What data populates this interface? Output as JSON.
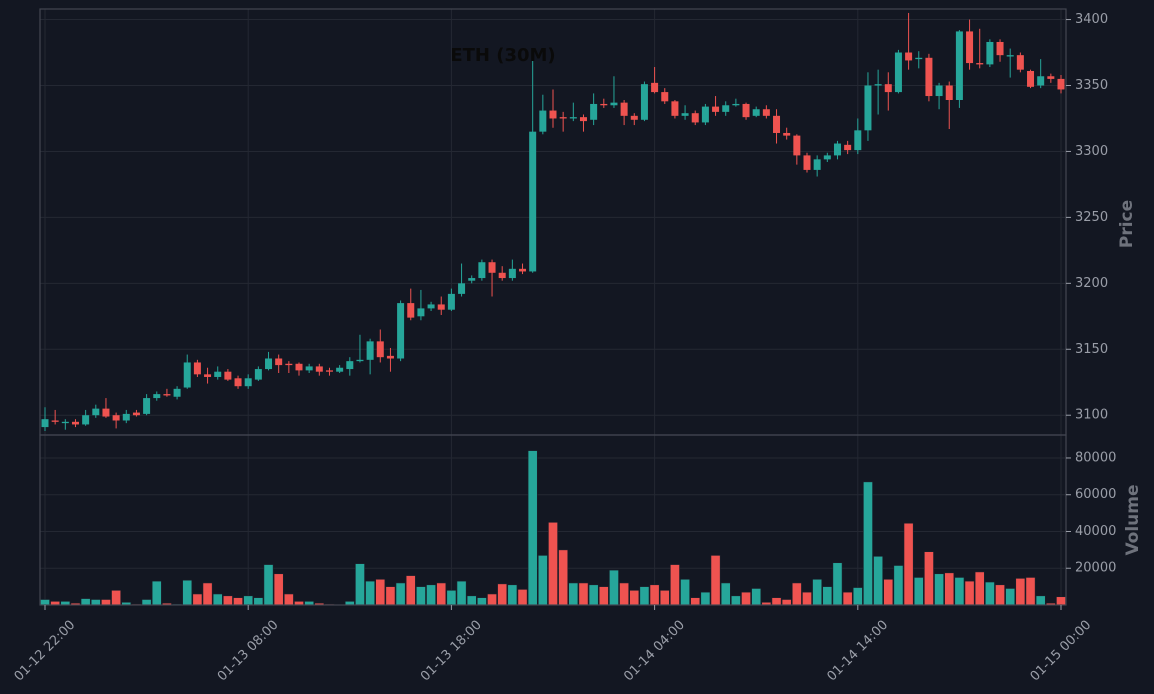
{
  "chart_data": {
    "type": "candlestick",
    "title": "ETH (30M)",
    "ylabel": "Price",
    "volume_label": "Volume",
    "up_color": "#26a69a",
    "down_color": "#ef5350",
    "grid": true,
    "categories": [
      "01-12 22:00",
      null,
      null,
      null,
      null,
      null,
      null,
      null,
      null,
      null,
      null,
      null,
      null,
      null,
      null,
      null,
      null,
      null,
      null,
      null,
      "01-13 08:00",
      null,
      null,
      null,
      null,
      null,
      null,
      null,
      null,
      null,
      null,
      null,
      null,
      null,
      null,
      null,
      null,
      null,
      null,
      null,
      "01-13 18:00",
      null,
      null,
      null,
      null,
      null,
      null,
      null,
      null,
      null,
      null,
      null,
      null,
      null,
      null,
      null,
      null,
      null,
      null,
      null,
      "01-14 04:00",
      null,
      null,
      null,
      null,
      null,
      null,
      null,
      null,
      null,
      null,
      null,
      null,
      null,
      null,
      null,
      null,
      null,
      null,
      null,
      "01-14 14:00",
      null,
      null,
      null,
      null,
      null,
      null,
      null,
      null,
      null,
      null,
      null,
      null,
      null,
      null,
      null,
      null,
      null,
      null,
      null,
      "01-15 00:00"
    ],
    "open": [
      3091,
      3096,
      3094,
      3095,
      3093,
      3100,
      3105,
      3100,
      3096,
      3102,
      3101,
      3113,
      3116,
      3114,
      3121,
      3140,
      3131,
      3129,
      3133,
      3128,
      3122,
      3127,
      3135,
      3143,
      3139,
      3139,
      3134,
      3137,
      3134,
      3133,
      3135,
      3141,
      3142,
      3156,
      3145,
      3143,
      3185,
      3175,
      3181,
      3184,
      3180,
      3192,
      3202,
      3204,
      3216,
      3208,
      3204,
      3211,
      3209,
      3315,
      3331,
      3326,
      3325,
      3326,
      3324,
      3336,
      3335,
      3337,
      3327,
      3324,
      3352,
      3345,
      3338,
      3327,
      3329,
      3322,
      3334,
      3330,
      3335,
      3336,
      3327,
      3332,
      3327,
      3314,
      3312,
      3297,
      3286,
      3294,
      3297,
      3305,
      3301,
      3316,
      3350,
      3351,
      3345,
      3375,
      3370,
      3371,
      3342,
      3350,
      3339,
      3391,
      3367,
      3366,
      3383,
      3372,
      3373,
      3361,
      3350,
      3357,
      3355
    ],
    "high": [
      3106,
      3104,
      3097,
      3097,
      3104,
      3108,
      3113,
      3102,
      3104,
      3104,
      3116,
      3118,
      3120,
      3122,
      3146,
      3142,
      3136,
      3137,
      3135,
      3130,
      3131,
      3137,
      3148,
      3146,
      3141,
      3140,
      3139,
      3139,
      3136,
      3138,
      3144,
      3161,
      3158,
      3165,
      3151,
      3187,
      3196,
      3195,
      3186,
      3190,
      3196,
      3215,
      3206,
      3218,
      3218,
      3213,
      3218,
      3215,
      3375,
      3343,
      3347,
      3330,
      3337,
      3328,
      3344,
      3340,
      3357,
      3339,
      3329,
      3353,
      3364,
      3348,
      3339,
      3335,
      3331,
      3336,
      3342,
      3338,
      3340,
      3337,
      3334,
      3335,
      3332,
      3318,
      3313,
      3299,
      3297,
      3299,
      3308,
      3308,
      3325,
      3360,
      3362,
      3360,
      3377,
      3405,
      3376,
      3374,
      3352,
      3353,
      3392,
      3400,
      3393,
      3385,
      3385,
      3378,
      3375,
      3362,
      3370,
      3359,
      3358
    ],
    "low": [
      3088,
      3093,
      3089,
      3091,
      3092,
      3098,
      3098,
      3090,
      3094,
      3099,
      3100,
      3111,
      3114,
      3112,
      3120,
      3129,
      3124,
      3127,
      3126,
      3120,
      3120,
      3126,
      3134,
      3132,
      3132,
      3130,
      3132,
      3130,
      3130,
      3132,
      3130,
      3140,
      3131,
      3140,
      3133,
      3141,
      3172,
      3172,
      3179,
      3176,
      3179,
      3190,
      3200,
      3202,
      3190,
      3202,
      3202,
      3207,
      3208,
      3313,
      3318,
      3315,
      3323,
      3315,
      3320,
      3333,
      3333,
      3320,
      3320,
      3323,
      3344,
      3336,
      3325,
      3324,
      3320,
      3320,
      3327,
      3327,
      3334,
      3324,
      3326,
      3325,
      3306,
      3309,
      3290,
      3284,
      3281,
      3292,
      3294,
      3298,
      3298,
      3308,
      3328,
      3331,
      3344,
      3362,
      3363,
      3338,
      3332,
      3317,
      3333,
      3362,
      3363,
      3364,
      3368,
      3356,
      3360,
      3348,
      3348,
      3352,
      3344
    ],
    "close": [
      3097,
      3095,
      3095,
      3093,
      3100,
      3105,
      3099,
      3096,
      3101,
      3100,
      3113,
      3116,
      3115,
      3120,
      3140,
      3131,
      3129,
      3133,
      3127,
      3122,
      3128,
      3135,
      3143,
      3138,
      3138,
      3134,
      3137,
      3133,
      3133,
      3136,
      3141,
      3142,
      3156,
      3144,
      3143,
      3185,
      3174,
      3181,
      3184,
      3180,
      3192,
      3200,
      3204,
      3216,
      3208,
      3204,
      3211,
      3209,
      3315,
      3331,
      3325,
      3325,
      3326,
      3323,
      3336,
      3335,
      3337,
      3327,
      3324,
      3351,
      3345,
      3338,
      3327,
      3329,
      3322,
      3334,
      3330,
      3335,
      3336,
      3326,
      3332,
      3327,
      3314,
      3312,
      3297,
      3286,
      3294,
      3297,
      3306,
      3301,
      3316,
      3350,
      3351,
      3345,
      3375,
      3369,
      3371,
      3342,
      3350,
      3339,
      3391,
      3367,
      3366,
      3383,
      3373,
      3373,
      3362,
      3349,
      3357,
      3355,
      3347
    ],
    "volume": [
      3000,
      2000,
      2000,
      1000,
      3500,
      3000,
      3000,
      8000,
      1500,
      500,
      3000,
      13000,
      1000,
      500,
      13500,
      6000,
      12000,
      6000,
      5000,
      4000,
      5000,
      4000,
      22000,
      17000,
      6000,
      2000,
      2000,
      1000,
      500,
      0,
      2000,
      22500,
      13000,
      14000,
      10000,
      12000,
      16000,
      10000,
      11000,
      12000,
      8000,
      13000,
      5000,
      4000,
      6000,
      11500,
      11000,
      8500,
      84000,
      27000,
      45000,
      30000,
      12000,
      12000,
      11000,
      10000,
      19000,
      12000,
      8000,
      10000,
      11000,
      8000,
      22000,
      14000,
      4000,
      7000,
      27000,
      12000,
      5000,
      7000,
      9000,
      1500,
      4000,
      3000,
      12000,
      7000,
      14000,
      10000,
      23000,
      7000,
      9500,
      67000,
      26500,
      14000,
      21500,
      44500,
      15000,
      29000,
      17000,
      17500,
      15000,
      13000,
      18000,
      12500,
      11000,
      9000,
      14500,
      15000,
      5000,
      1000,
      4500
    ],
    "ylim": [
      3085,
      3408
    ],
    "yticks": [
      3100,
      3150,
      3200,
      3250,
      3300,
      3350,
      3400
    ],
    "y2lim": [
      0,
      92500
    ],
    "y2ticks": [
      20000,
      40000,
      60000,
      80000
    ]
  }
}
